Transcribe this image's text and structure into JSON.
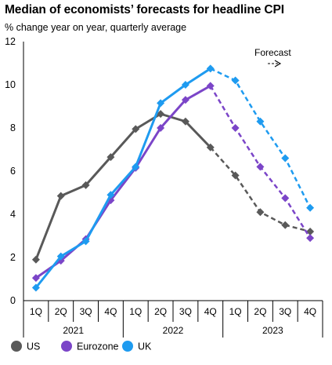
{
  "chart_data": {
    "type": "line",
    "title": "Median of economists’ forecasts for headline CPI",
    "subtitle": "% change year on year, quarterly average",
    "ylim": [
      0,
      12
    ],
    "yticks": [
      0,
      2,
      4,
      6,
      8,
      10,
      12
    ],
    "quarters": [
      "1Q",
      "2Q",
      "3Q",
      "4Q",
      "1Q",
      "2Q",
      "3Q",
      "4Q",
      "1Q",
      "2Q",
      "3Q",
      "4Q"
    ],
    "years": [
      "2021",
      "2022",
      "2023"
    ],
    "forecast_label": "Forecast",
    "forecast_start_index": 8,
    "series": [
      {
        "name": "US",
        "color": "#595959",
        "marker": "diamond",
        "values": [
          1.9,
          4.85,
          5.35,
          6.65,
          7.95,
          8.65,
          8.3,
          7.1,
          5.8,
          4.1,
          3.5,
          3.2
        ]
      },
      {
        "name": "Eurozone",
        "color": "#7B45C8",
        "marker": "diamond",
        "values": [
          1.05,
          1.85,
          2.85,
          4.65,
          6.15,
          8.0,
          9.3,
          9.95,
          8.0,
          6.2,
          4.75,
          2.9
        ]
      },
      {
        "name": "UK",
        "color": "#1E9BF0",
        "marker": "diamond",
        "values": [
          0.6,
          2.05,
          2.75,
          4.9,
          6.2,
          9.15,
          10.0,
          10.75,
          10.2,
          8.3,
          6.6,
          4.3
        ]
      }
    ],
    "legend_position": "bottom-left",
    "grid": false
  }
}
